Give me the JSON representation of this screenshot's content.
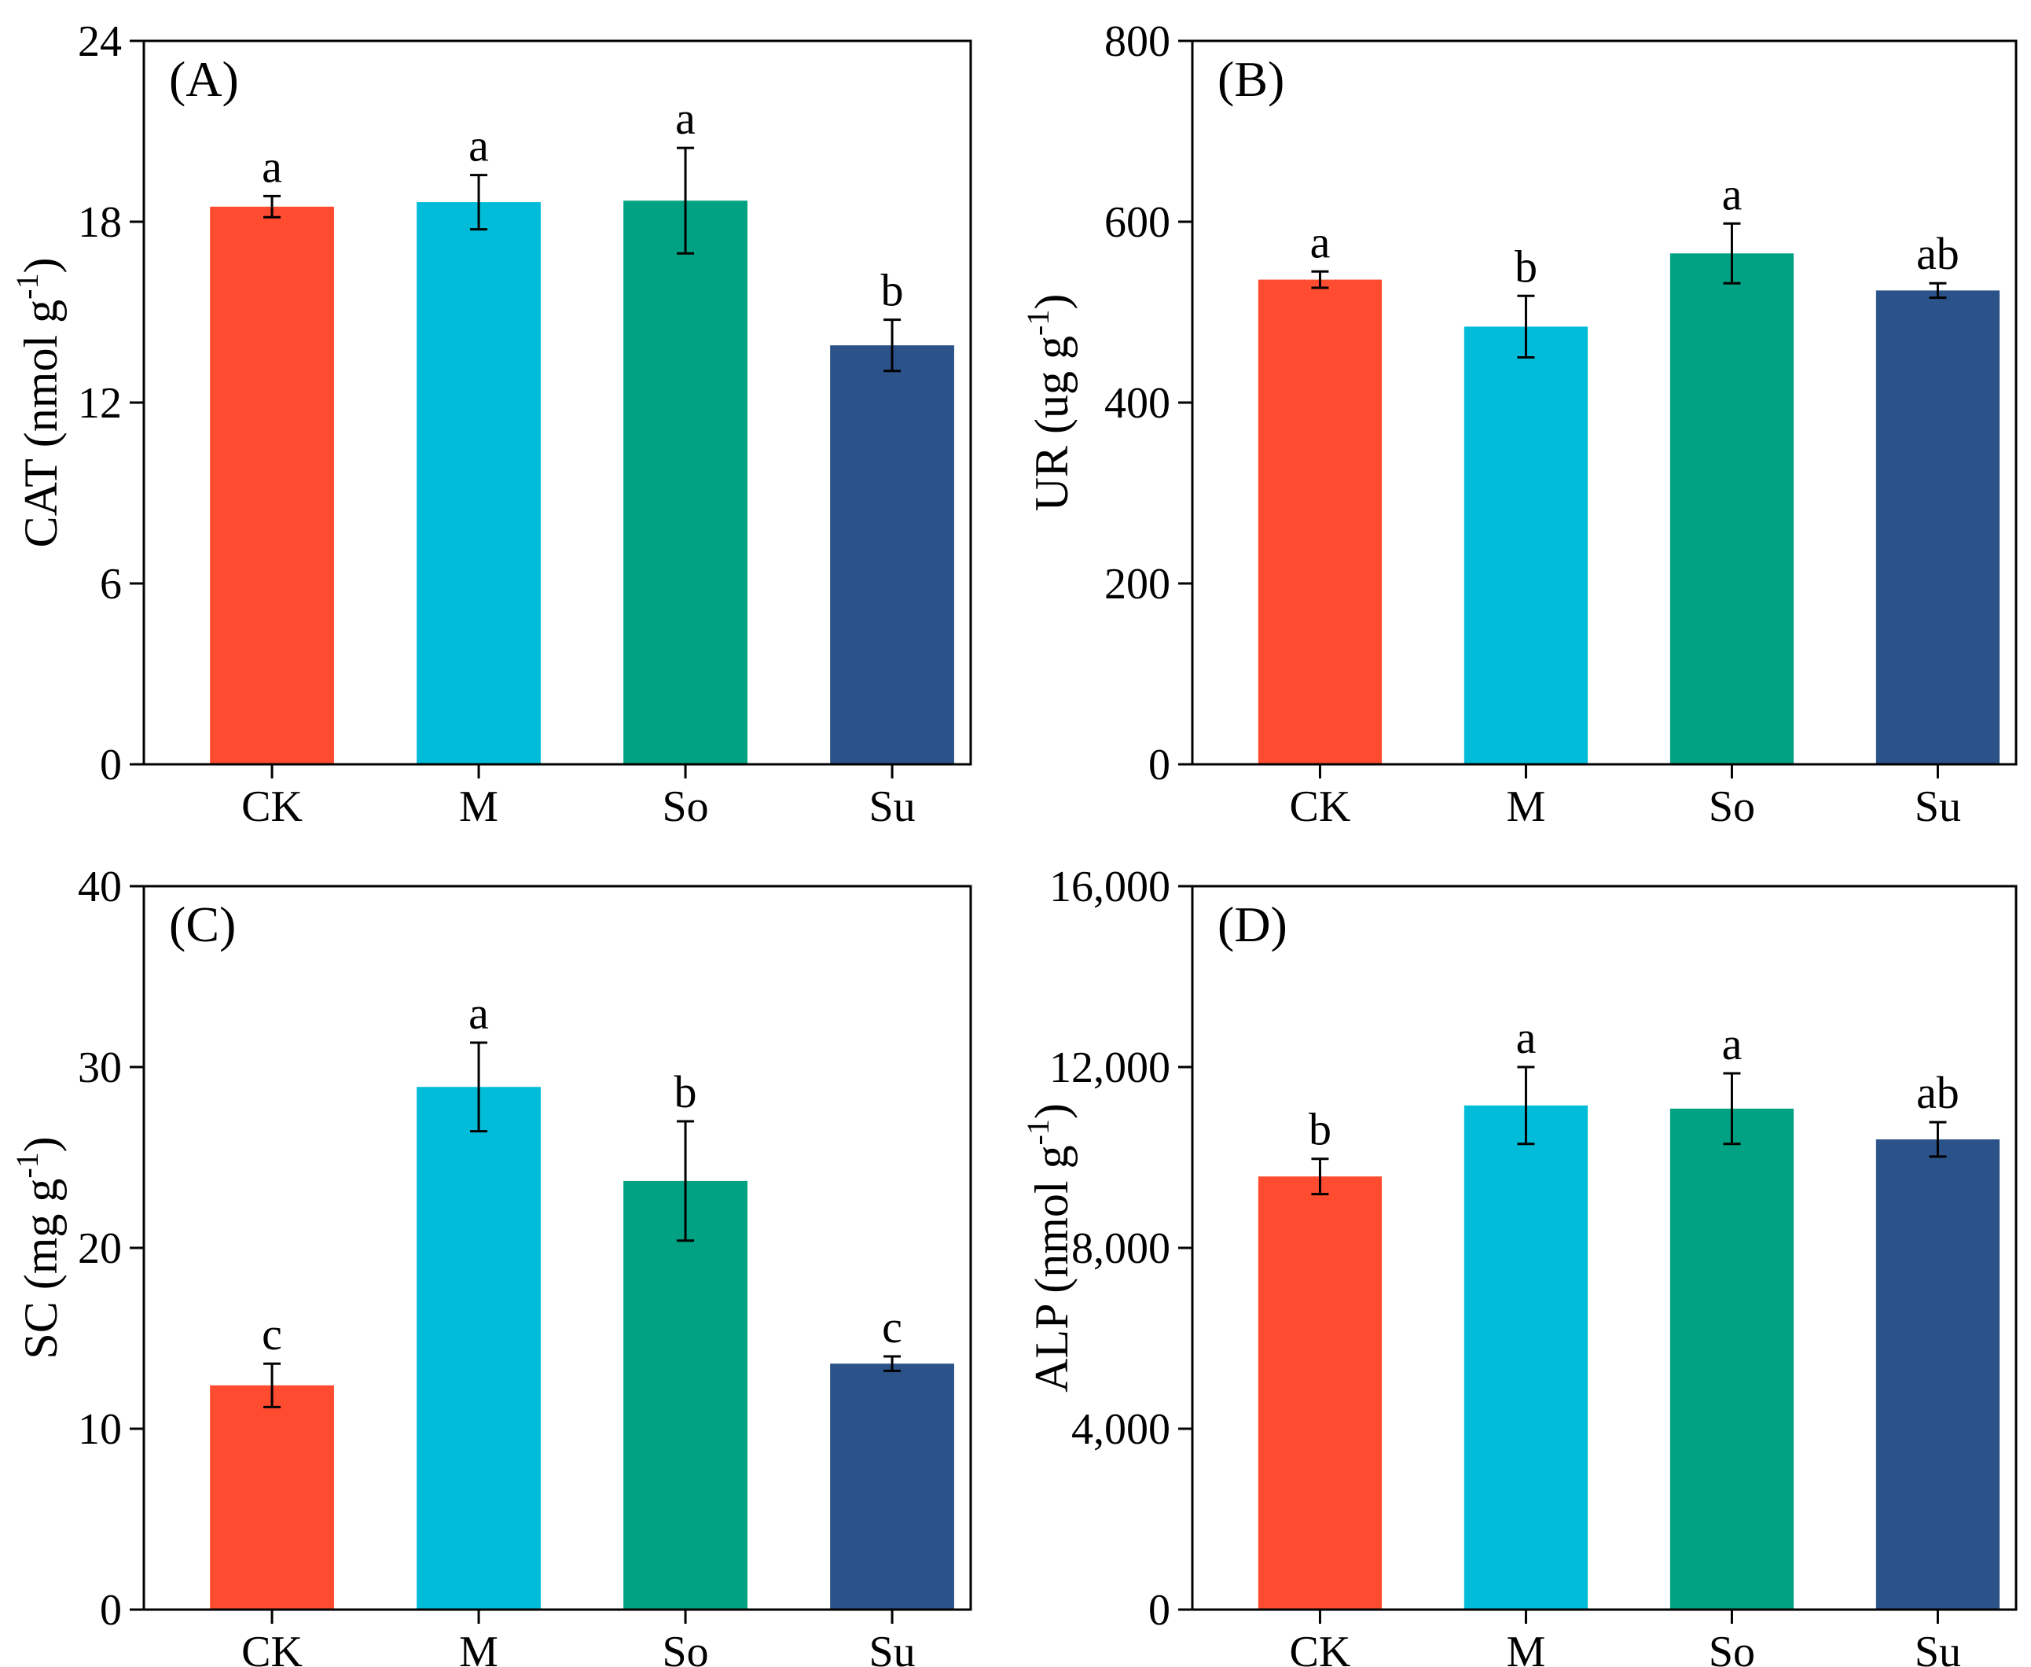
{
  "categories": [
    "CK",
    "M",
    "So",
    "Su"
  ],
  "colors": {
    "CK": "#FF4B2F",
    "M": "#00BCD8",
    "So": "#00A283",
    "Su": "#2B5289"
  },
  "chart_data": [
    {
      "type": "bar",
      "panel": "(A)",
      "ylabel": {
        "main": "CAT (nmol g",
        "sup": "-1",
        "close": ")"
      },
      "ylim": [
        0,
        24
      ],
      "yticks": [
        0,
        6,
        12,
        18,
        24
      ],
      "ytick_labels": [
        "0",
        "6",
        "12",
        "18",
        "24"
      ],
      "categories": [
        "CK",
        "M",
        "So",
        "Su"
      ],
      "values": [
        18.5,
        18.65,
        18.7,
        13.9
      ],
      "errors": [
        0.35,
        0.9,
        1.75,
        0.85
      ],
      "letters": [
        "a",
        "a",
        "a",
        "b"
      ]
    },
    {
      "type": "bar",
      "panel": "(B)",
      "ylabel": {
        "main": "UR (ug g",
        "sup": "-1",
        "close": ")"
      },
      "ylim": [
        0,
        800
      ],
      "yticks": [
        0,
        200,
        400,
        600,
        800
      ],
      "ytick_labels": [
        "0",
        "200",
        "400",
        "600",
        "800"
      ],
      "categories": [
        "CK",
        "M",
        "So",
        "Su"
      ],
      "values": [
        536,
        484,
        565,
        524
      ],
      "errors": [
        9,
        34,
        33,
        8
      ],
      "letters": [
        "a",
        "b",
        "a",
        "ab"
      ]
    },
    {
      "type": "bar",
      "panel": "(C)",
      "ylabel": {
        "main": "SC (mg g",
        "sup": "-1",
        "close": ")"
      },
      "ylim": [
        0,
        40
      ],
      "yticks": [
        0,
        10,
        20,
        30,
        40
      ],
      "ytick_labels": [
        "0",
        "10",
        "20",
        "30",
        "40"
      ],
      "categories": [
        "CK",
        "M",
        "So",
        "Su"
      ],
      "values": [
        12.4,
        28.9,
        23.7,
        13.6
      ],
      "errors": [
        1.2,
        2.45,
        3.3,
        0.4
      ],
      "letters": [
        "c",
        "a",
        "b",
        "c"
      ]
    },
    {
      "type": "bar",
      "panel": "(D)",
      "ylabel": {
        "main": "ALP (nmol g",
        "sup": "-1",
        "close": ")"
      },
      "ylim": [
        0,
        16000
      ],
      "yticks": [
        0,
        4000,
        8000,
        12000,
        16000
      ],
      "ytick_labels": [
        "0",
        "4,000",
        "8,000",
        "12,000",
        "16,000"
      ],
      "categories": [
        "CK",
        "M",
        "So",
        "Su"
      ],
      "values": [
        9580,
        11150,
        11080,
        10400
      ],
      "errors": [
        390,
        850,
        780,
        380
      ],
      "letters": [
        "b",
        "a",
        "a",
        "ab"
      ]
    }
  ]
}
